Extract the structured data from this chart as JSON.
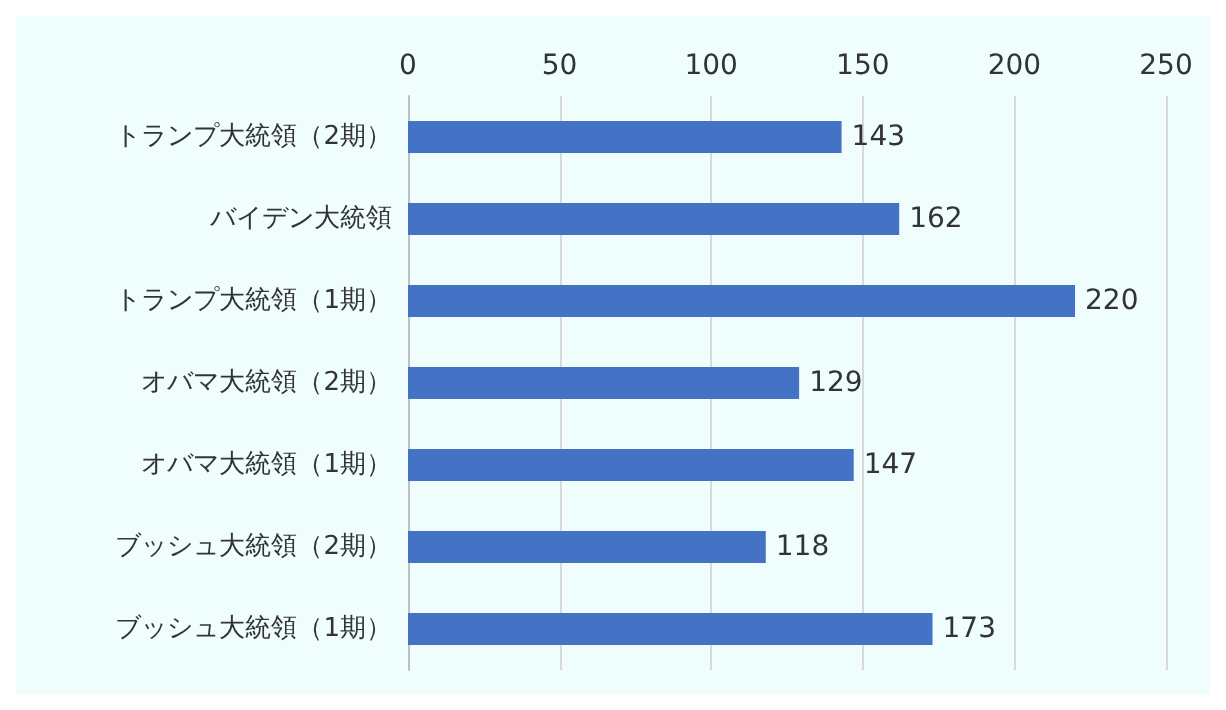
{
  "chart_data": {
    "type": "bar",
    "orientation": "horizontal",
    "categories": [
      "トランプ大統領（2期）",
      "バイデン大統領",
      "トランプ大統領（1期）",
      "オバマ大統領（2期）",
      "オバマ大統領（1期）",
      "ブッシュ大統領（2期）",
      "ブッシュ大統領（1期）"
    ],
    "values": [
      143,
      162,
      220,
      129,
      147,
      118,
      173
    ],
    "color": "#4472c4",
    "xlim": [
      0,
      250
    ],
    "xticks": [
      0,
      50,
      100,
      150,
      200,
      250
    ],
    "grid": "x",
    "data_labels": true
  }
}
